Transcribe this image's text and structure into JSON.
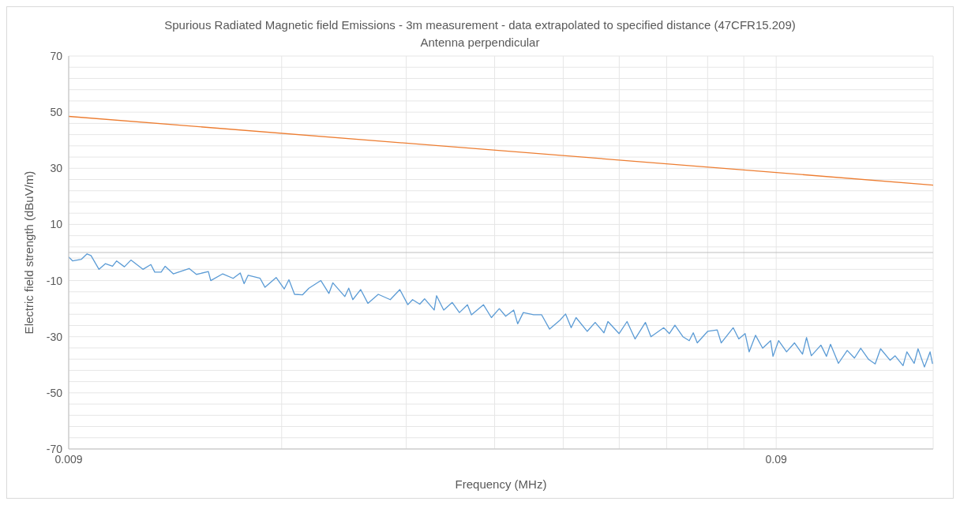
{
  "chart_data": {
    "type": "line",
    "title": "Spurious Radiated Magnetic field Emissions - 3m measurement - data extrapolated to specified distance (47CFR15.209)",
    "subtitle": "Antenna perpendicular",
    "xlabel": "Frequency (MHz)",
    "ylabel": "Electric field strength (dBuV/m)",
    "log": "x",
    "grid": true,
    "legend": false,
    "marker": "none",
    "line_style": "solid",
    "xlim": [
      0.009,
      0.15
    ],
    "xticks": [
      {
        "value": 0.009,
        "label": "0.009"
      },
      {
        "value": 0.018,
        "label": null
      },
      {
        "value": 0.027,
        "label": null
      },
      {
        "value": 0.036,
        "label": null
      },
      {
        "value": 0.045,
        "label": null
      },
      {
        "value": 0.054,
        "label": null
      },
      {
        "value": 0.063,
        "label": null
      },
      {
        "value": 0.072,
        "label": null
      },
      {
        "value": 0.081,
        "label": null
      },
      {
        "value": 0.09,
        "label": "0.09"
      }
    ],
    "ylim": [
      -70,
      70
    ],
    "yticks": [
      70,
      {
        "value": 66,
        "label": null
      },
      {
        "value": 62,
        "label": null
      },
      {
        "value": 58,
        "label": null
      },
      {
        "value": 54,
        "label": null
      },
      50,
      {
        "value": 46,
        "label": null
      },
      {
        "value": 42,
        "label": null
      },
      {
        "value": 38,
        "label": null
      },
      {
        "value": 34,
        "label": null
      },
      30,
      {
        "value": 26,
        "label": null
      },
      {
        "value": 22,
        "label": null
      },
      {
        "value": 18,
        "label": null
      },
      {
        "value": 14,
        "label": null
      },
      10,
      {
        "value": 6,
        "label": null
      },
      {
        "value": 2,
        "label": null
      },
      {
        "value": -2,
        "label": null
      },
      {
        "value": -6,
        "label": null
      },
      -10,
      {
        "value": -14,
        "label": null
      },
      {
        "value": -18,
        "label": null
      },
      {
        "value": -22,
        "label": null
      },
      {
        "value": -26,
        "label": null
      },
      -30,
      {
        "value": -34,
        "label": null
      },
      {
        "value": -38,
        "label": null
      },
      {
        "value": -42,
        "label": null
      },
      {
        "value": -46,
        "label": null
      },
      -50,
      {
        "value": -54,
        "label": null
      },
      {
        "value": -58,
        "label": null
      },
      {
        "value": -62,
        "label": null
      },
      {
        "value": -66,
        "label": null
      },
      -70
    ],
    "ref_lines": [
      {
        "axis": "y",
        "value": 0,
        "color": "#bfbfbf"
      }
    ],
    "series": [
      {
        "color": "#5b9bd5",
        "x": [
          0.009,
          0.009118,
          0.009382,
          0.009554,
          0.009678,
          0.009933,
          0.01014,
          0.01038,
          0.01052,
          0.01079,
          0.01102,
          0.01146,
          0.01176,
          0.01191,
          0.01216,
          0.01232,
          0.01265,
          0.01294,
          0.01332,
          0.01364,
          0.01418,
          0.01429,
          0.01486,
          0.01537,
          0.01573,
          0.01593,
          0.01614,
          0.01678,
          0.01705,
          0.01768,
          0.01815,
          0.01843,
          0.01877,
          0.01926,
          0.01967,
          0.02045,
          0.02099,
          0.02126,
          0.02211,
          0.02239,
          0.02269,
          0.02328,
          0.02383,
          0.02465,
          0.02563,
          0.02644,
          0.02714,
          0.02756,
          0.02821,
          0.02866,
          0.02957,
          0.0298,
          0.0305,
          0.03136,
          0.0321,
          0.03295,
          0.03338,
          0.03471,
          0.03562,
          0.03655,
          0.03732,
          0.0383,
          0.0388,
          0.03952,
          0.04087,
          0.04195,
          0.04305,
          0.04453,
          0.04535,
          0.04618,
          0.04692,
          0.04865,
          0.04993,
          0.05138,
          0.05205,
          0.05397,
          0.05539,
          0.05685,
          0.0588,
          0.05987,
          0.06242,
          0.06356,
          0.06473,
          0.06643,
          0.06782,
          0.06871,
          0.06961,
          0.072,
          0.07428,
          0.07525,
          0.07824,
          0.07968,
          0.08135,
          0.08241,
          0.08414,
          0.08612,
          0.08838,
          0.08907,
          0.0907,
          0.09309,
          0.09553,
          0.09805,
          0.09933,
          0.1009,
          0.1041,
          0.106,
          0.1074,
          0.1102,
          0.1134,
          0.1161,
          0.1185,
          0.1216,
          0.1242,
          0.1264,
          0.1304,
          0.1325,
          0.136,
          0.1377,
          0.141,
          0.1428,
          0.1458,
          0.1485,
          0.1497
        ],
        "values": [
          -1.6,
          -3,
          -2.4,
          -0.5,
          -1.1,
          -6,
          -4,
          -4.9,
          -3,
          -5.1,
          -2.7,
          -6,
          -4.3,
          -7,
          -7,
          -4.9,
          -7.6,
          -6.8,
          -5.7,
          -7.8,
          -6.8,
          -10,
          -7.6,
          -9.2,
          -7.3,
          -11.1,
          -8.1,
          -9.2,
          -12.4,
          -8.9,
          -13,
          -9.7,
          -14.9,
          -15.1,
          -12.7,
          -10,
          -14.6,
          -10.8,
          -15.7,
          -12.7,
          -16.8,
          -13.2,
          -18.1,
          -14.9,
          -16.8,
          -13.2,
          -18.6,
          -16.8,
          -18.4,
          -16.5,
          -20.5,
          -15.4,
          -20.5,
          -17.8,
          -21.4,
          -18.6,
          -22.2,
          -18.6,
          -23.2,
          -20,
          -22.7,
          -20.5,
          -25.4,
          -21.4,
          -22.2,
          -22.2,
          -27.3,
          -24.1,
          -21.9,
          -26.8,
          -23.2,
          -28.1,
          -24.9,
          -28.6,
          -24.6,
          -28.9,
          -24.6,
          -30.8,
          -24.9,
          -30,
          -26.8,
          -28.9,
          -25.9,
          -30,
          -31.4,
          -28.6,
          -32.2,
          -28.1,
          -27.6,
          -32.2,
          -26.8,
          -30.8,
          -28.9,
          -35.4,
          -29.5,
          -34.1,
          -31.4,
          -37,
          -31.4,
          -35.4,
          -32.2,
          -36.2,
          -30.3,
          -36.8,
          -33,
          -37,
          -32.7,
          -39.5,
          -34.9,
          -37.6,
          -34.1,
          -38.1,
          -39.7,
          -34.3,
          -38.4,
          -36.8,
          -40.3,
          -35.4,
          -39.5,
          -34.3,
          -40.8,
          -35.4,
          -39.7
        ]
      },
      {
        "color": "#ed7d31",
        "x": [
          0.009,
          0.09,
          0.15
        ],
        "values": [
          48.5,
          28.5,
          24
        ]
      }
    ]
  }
}
